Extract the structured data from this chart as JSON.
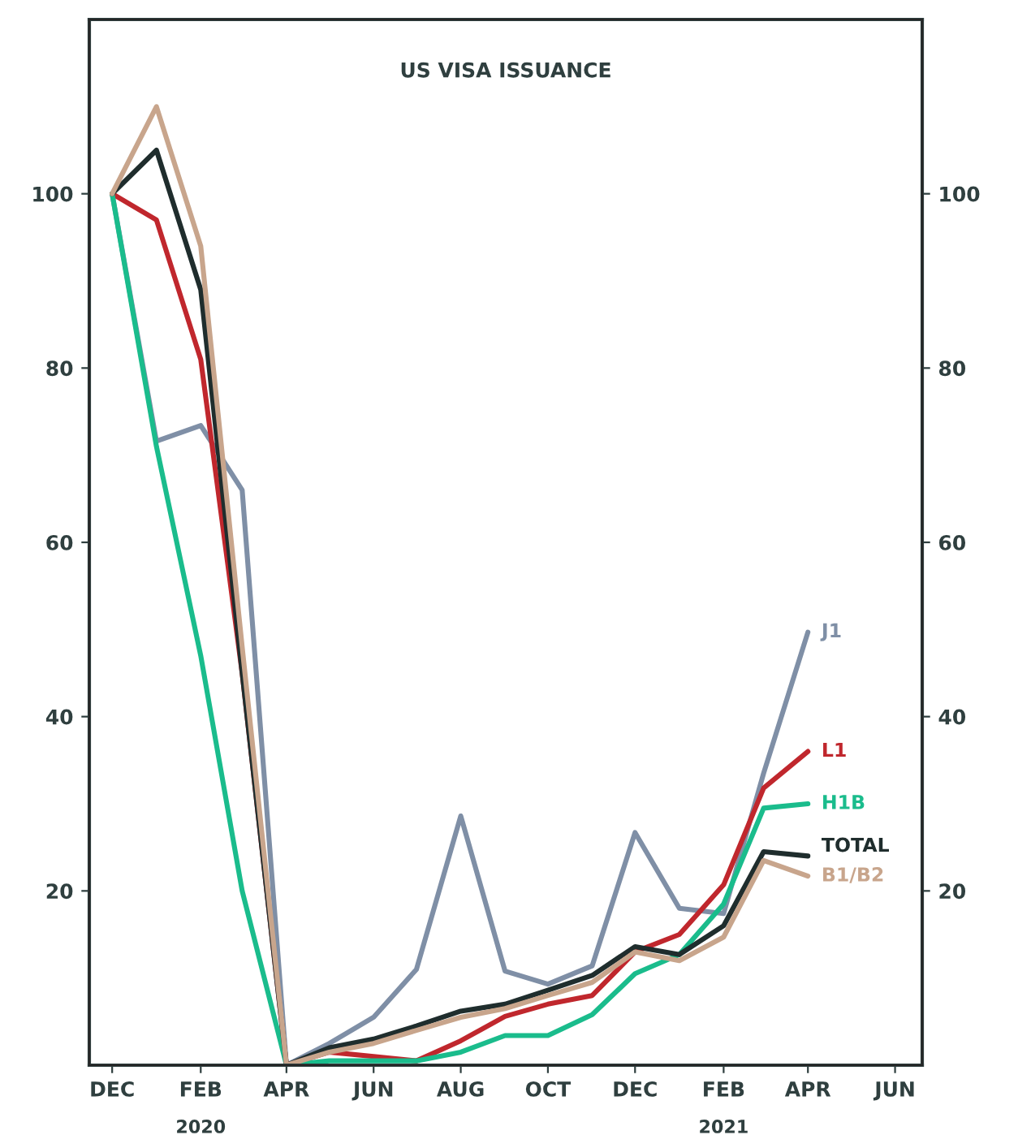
{
  "chart_data": {
    "type": "line",
    "title": "US VISA ISSUANCE",
    "x": [
      "2019-12",
      "2020-01",
      "2020-02",
      "2020-03",
      "2020-04",
      "2020-05",
      "2020-06",
      "2020-07",
      "2020-08",
      "2020-09",
      "2020-10",
      "2020-11",
      "2020-12",
      "2021-01",
      "2021-02",
      "2021-03",
      "2021-04"
    ],
    "series": [
      {
        "name": "J1",
        "color": "#7f8fa6",
        "values": [
          100,
          71.6,
          73.4,
          66,
          0,
          2.5,
          5.5,
          11,
          28.6,
          10.8,
          9.3,
          11.4,
          26.7,
          18,
          17.4,
          33.5,
          49.7
        ]
      },
      {
        "name": "L1",
        "color": "#c0272d",
        "values": [
          100,
          97,
          81,
          45,
          0,
          1.5,
          1,
          0.5,
          2.8,
          5.6,
          7,
          8,
          13,
          15,
          20.7,
          31.8,
          36
        ]
      },
      {
        "name": "H1B",
        "color": "#1abc8c",
        "values": [
          100,
          71,
          47,
          20,
          0,
          0.5,
          0.5,
          0.5,
          1.5,
          3.4,
          3.4,
          5.8,
          10.5,
          12.7,
          18.5,
          29.5,
          30
        ]
      },
      {
        "name": "TOTAL",
        "color": "#1f2d2d",
        "values": [
          100,
          105,
          89,
          45,
          0,
          2,
          3,
          4.5,
          6.2,
          7,
          8.6,
          10.3,
          13.6,
          12.7,
          16,
          24.5,
          24
        ]
      },
      {
        "name": "B1/B2",
        "color": "#c8a58c",
        "values": [
          100,
          110,
          94,
          48,
          0,
          1.5,
          2.5,
          4,
          5.5,
          6.5,
          8,
          9.5,
          13,
          12,
          14.7,
          23.5,
          21.7
        ]
      }
    ],
    "xlim": [
      "2019-11-15",
      "2021-06-20"
    ],
    "xticks": [
      {
        "value": "2019-12",
        "label": "DEC"
      },
      {
        "value": "2020-02",
        "label": "FEB"
      },
      {
        "value": "2020-04",
        "label": "APR"
      },
      {
        "value": "2020-06",
        "label": "JUN"
      },
      {
        "value": "2020-08",
        "label": "AUG"
      },
      {
        "value": "2020-10",
        "label": "OCT"
      },
      {
        "value": "2020-12",
        "label": "DEC"
      },
      {
        "value": "2021-02",
        "label": "FEB"
      },
      {
        "value": "2021-04",
        "label": "APR"
      },
      {
        "value": "2021-06",
        "label": "JUN"
      }
    ],
    "ylim": [
      0,
      120
    ],
    "yticks": [
      20,
      40,
      60,
      80,
      100
    ],
    "y2lim": [
      0,
      120
    ],
    "y2ticks": [
      20,
      40,
      60,
      80,
      100
    ],
    "annotations": [
      "2020",
      "2021"
    ],
    "grid": false,
    "legend": false
  }
}
